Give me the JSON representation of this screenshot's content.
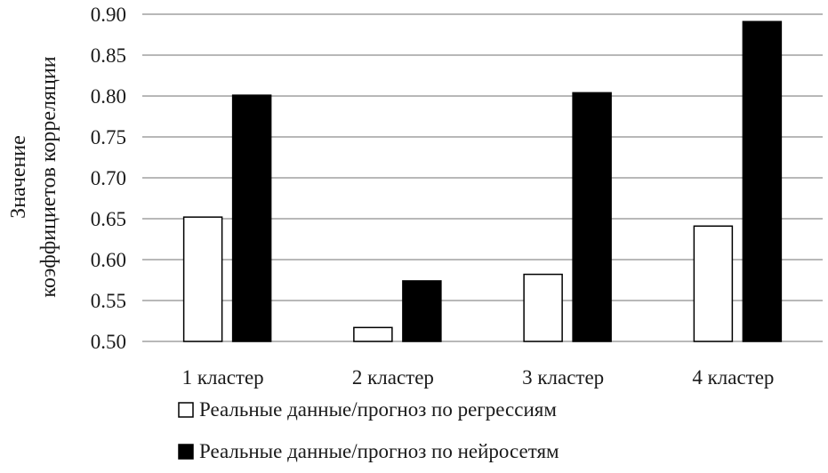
{
  "chart_data": {
    "type": "bar",
    "categories": [
      "1 кластер",
      "2 кластер",
      "3 кластер",
      "4 кластер"
    ],
    "series": [
      {
        "name": "Реальные данные/прогноз по регрессиям",
        "values": [
          0.652,
          0.517,
          0.582,
          0.641
        ],
        "color": "#ffffff",
        "stroke": "#000000"
      },
      {
        "name": "Реальные данные/прогноз по нейросетям",
        "values": [
          0.801,
          0.574,
          0.804,
          0.891
        ],
        "color": "#000000",
        "stroke": "#000000"
      }
    ],
    "ylabel_lines": [
      "Значение",
      "коэффициетов корреляции"
    ],
    "xlabel": "",
    "title": "",
    "ylim": [
      0.5,
      0.9
    ],
    "yticks": [
      "0.50",
      "0.55",
      "0.60",
      "0.65",
      "0.70",
      "0.75",
      "0.80",
      "0.85",
      "0.90"
    ],
    "grid": true,
    "legend_position": "bottom",
    "gridline_color": "#a0a0a0"
  }
}
